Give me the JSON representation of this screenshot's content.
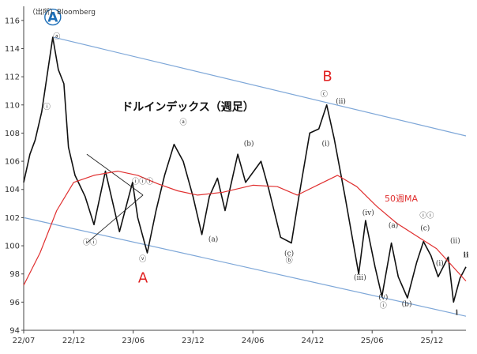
{
  "chart_data": {
    "type": "line",
    "title": "ドルインデックス（週足）",
    "source": "（出所）Bloomberg",
    "ylim": [
      94,
      117
    ],
    "y_ticks": [
      94,
      96,
      98,
      100,
      102,
      104,
      106,
      108,
      110,
      112,
      114,
      116
    ],
    "x_range": [
      "2022-07-01",
      "2026-03-15"
    ],
    "x_ticks": [
      {
        "label": "22/07",
        "date": "2022-07-01"
      },
      {
        "label": "22/12",
        "date": "2022-12-01"
      },
      {
        "label": "23/06",
        "date": "2023-06-01"
      },
      {
        "label": "23/12",
        "date": "2023-12-01"
      },
      {
        "label": "24/06",
        "date": "2024-06-01"
      },
      {
        "label": "24/12",
        "date": "2024-12-01"
      },
      {
        "label": "25/06",
        "date": "2025-06-01"
      },
      {
        "label": "25/12",
        "date": "2025-12-01"
      }
    ],
    "series": [
      {
        "name": "ドルインデックス",
        "color": "#111111",
        "points": [
          [
            "2022-07-01",
            104.5
          ],
          [
            "2022-07-20",
            106.5
          ],
          [
            "2022-08-05",
            107.5
          ],
          [
            "2022-08-25",
            109.5
          ],
          [
            "2022-09-10",
            112.0
          ],
          [
            "2022-09-28",
            114.8
          ],
          [
            "2022-10-15",
            112.5
          ],
          [
            "2022-11-01",
            111.5
          ],
          [
            "2022-11-15",
            107.0
          ],
          [
            "2022-12-05",
            105.0
          ],
          [
            "2023-01-05",
            103.5
          ],
          [
            "2023-02-01",
            101.5
          ],
          [
            "2023-03-08",
            105.3
          ],
          [
            "2023-04-05",
            102.5
          ],
          [
            "2023-04-20",
            101.0
          ],
          [
            "2023-05-30",
            104.5
          ],
          [
            "2023-06-15",
            102.0
          ],
          [
            "2023-07-14",
            99.5
          ],
          [
            "2023-08-10",
            102.5
          ],
          [
            "2023-09-05",
            105.0
          ],
          [
            "2023-10-04",
            107.2
          ],
          [
            "2023-11-01",
            106.0
          ],
          [
            "2023-12-01",
            103.5
          ],
          [
            "2023-12-28",
            100.8
          ],
          [
            "2024-01-20",
            103.5
          ],
          [
            "2024-02-14",
            104.8
          ],
          [
            "2024-03-08",
            102.5
          ],
          [
            "2024-04-16",
            106.5
          ],
          [
            "2024-05-10",
            104.5
          ],
          [
            "2024-06-26",
            106.0
          ],
          [
            "2024-07-20",
            104.0
          ],
          [
            "2024-08-25",
            100.6
          ],
          [
            "2024-09-27",
            100.2
          ],
          [
            "2024-10-20",
            103.5
          ],
          [
            "2024-11-22",
            108.0
          ],
          [
            "2024-12-20",
            108.3
          ],
          [
            "2025-01-13",
            110.0
          ],
          [
            "2025-02-05",
            107.6
          ],
          [
            "2025-03-10",
            103.5
          ],
          [
            "2025-04-21",
            98.0
          ],
          [
            "2025-05-12",
            101.8
          ],
          [
            "2025-06-10",
            98.5
          ],
          [
            "2025-07-01",
            96.4
          ],
          [
            "2025-07-30",
            100.2
          ],
          [
            "2025-08-20",
            97.8
          ],
          [
            "2025-09-17",
            96.3
          ],
          [
            "2025-10-15",
            98.8
          ],
          [
            "2025-11-05",
            100.3
          ],
          [
            "2025-11-28",
            99.3
          ],
          [
            "2025-12-20",
            97.8
          ],
          [
            "2026-01-20",
            99.2
          ],
          [
            "2026-02-05",
            96.0
          ],
          [
            "2026-02-25",
            97.7
          ],
          [
            "2026-03-15",
            98.5
          ]
        ]
      },
      {
        "name": "50週MA",
        "color": "#e03030",
        "points": [
          [
            "2022-07-01",
            97.2
          ],
          [
            "2022-08-20",
            99.5
          ],
          [
            "2022-10-10",
            102.5
          ],
          [
            "2022-12-01",
            104.5
          ],
          [
            "2023-02-01",
            105.0
          ],
          [
            "2023-04-15",
            105.3
          ],
          [
            "2023-06-15",
            105.0
          ],
          [
            "2023-08-15",
            104.4
          ],
          [
            "2023-10-15",
            103.9
          ],
          [
            "2023-12-15",
            103.6
          ],
          [
            "2024-03-01",
            103.8
          ],
          [
            "2024-06-01",
            104.3
          ],
          [
            "2024-08-15",
            104.2
          ],
          [
            "2024-10-15",
            103.6
          ],
          [
            "2024-12-15",
            104.3
          ],
          [
            "2025-02-15",
            105.0
          ],
          [
            "2025-04-15",
            104.2
          ],
          [
            "2025-06-15",
            102.8
          ],
          [
            "2025-08-15",
            101.6
          ],
          [
            "2025-10-15",
            100.7
          ],
          [
            "2025-12-15",
            99.8
          ],
          [
            "2026-03-15",
            97.5
          ]
        ]
      }
    ],
    "ma_label": "50週MA",
    "channel_lines": [
      {
        "from": [
          "2022-10-01",
          114.8
        ],
        "to": [
          "2026-03-15",
          107.8
        ]
      },
      {
        "from": [
          "2022-07-01",
          102.0
        ],
        "to": [
          "2026-03-15",
          95.0
        ]
      }
    ],
    "triangle_lines": [
      {
        "from": [
          "2023-01-10",
          106.5
        ],
        "to": [
          "2023-07-01",
          103.6
        ]
      },
      {
        "from": [
          "2023-01-10",
          100.2
        ],
        "to": [
          "2023-07-01",
          103.6
        ]
      }
    ],
    "big_labels": [
      {
        "text": "A",
        "date": "2022-09-28",
        "y": 115.9,
        "color": "#1e6fb8",
        "circled": true
      },
      {
        "text": "A",
        "date": "2023-07-01",
        "y": 97.4,
        "color": "#e02020",
        "circled": false
      },
      {
        "text": "B",
        "date": "2025-01-15",
        "y": 111.7,
        "color": "#e02020",
        "circled": false
      }
    ],
    "wave_labels": [
      {
        "text": "ⓐ",
        "date": "2022-10-10",
        "y": 114.7
      },
      {
        "text": "ⓘ",
        "date": "2022-09-10",
        "y": 109.7
      },
      {
        "text": "ⓘⓘ",
        "date": "2023-01-20",
        "y": 100.1
      },
      {
        "text": "ⓘⓘⓘ",
        "date": "2023-06-30",
        "y": 104.4
      },
      {
        "text": "ⓥ",
        "date": "2023-06-30",
        "y": 98.9
      },
      {
        "text": "ⓐ",
        "date": "2023-11-01",
        "y": 108.6
      },
      {
        "text": "(a)",
        "date": "2024-02-01",
        "y": 100.3
      },
      {
        "text": "(b)",
        "date": "2024-05-20",
        "y": 107.1
      },
      {
        "text": "(c)",
        "date": "2024-09-20",
        "y": 99.3
      },
      {
        "text": "ⓑ",
        "date": "2024-09-20",
        "y": 98.8
      },
      {
        "text": "ⓒ",
        "date": "2025-01-05",
        "y": 110.6
      },
      {
        "text": "(ⅱ)",
        "date": "2025-02-25",
        "y": 110.1
      },
      {
        "text": "(ⅰ)",
        "date": "2025-01-10",
        "y": 107.1
      },
      {
        "text": "(ⅳ)",
        "date": "2025-05-20",
        "y": 102.2
      },
      {
        "text": "(ⅲ)",
        "date": "2025-04-25",
        "y": 97.6
      },
      {
        "text": "(a)",
        "date": "2025-08-05",
        "y": 101.3
      },
      {
        "text": "(ⅴ)",
        "date": "2025-07-05",
        "y": 96.2
      },
      {
        "text": "ⓘ",
        "date": "2025-07-05",
        "y": 95.6
      },
      {
        "text": "(b)",
        "date": "2025-09-15",
        "y": 95.7
      },
      {
        "text": "(c)",
        "date": "2025-11-10",
        "y": 101.1
      },
      {
        "text": "ⓘⓘ",
        "date": "2025-11-15",
        "y": 102.0
      },
      {
        "text": "(ⅱ)",
        "date": "2026-02-10",
        "y": 100.2
      },
      {
        "text": "(ⅰ)",
        "date": "2025-12-25",
        "y": 98.6
      },
      {
        "text": "ⅱ",
        "date": "2026-03-15",
        "y": 99.2,
        "color": "#1e6fb8"
      },
      {
        "text": "ⅰ",
        "date": "2026-02-15",
        "y": 95.1,
        "color": "#1e6fb8"
      }
    ],
    "grid": false
  }
}
